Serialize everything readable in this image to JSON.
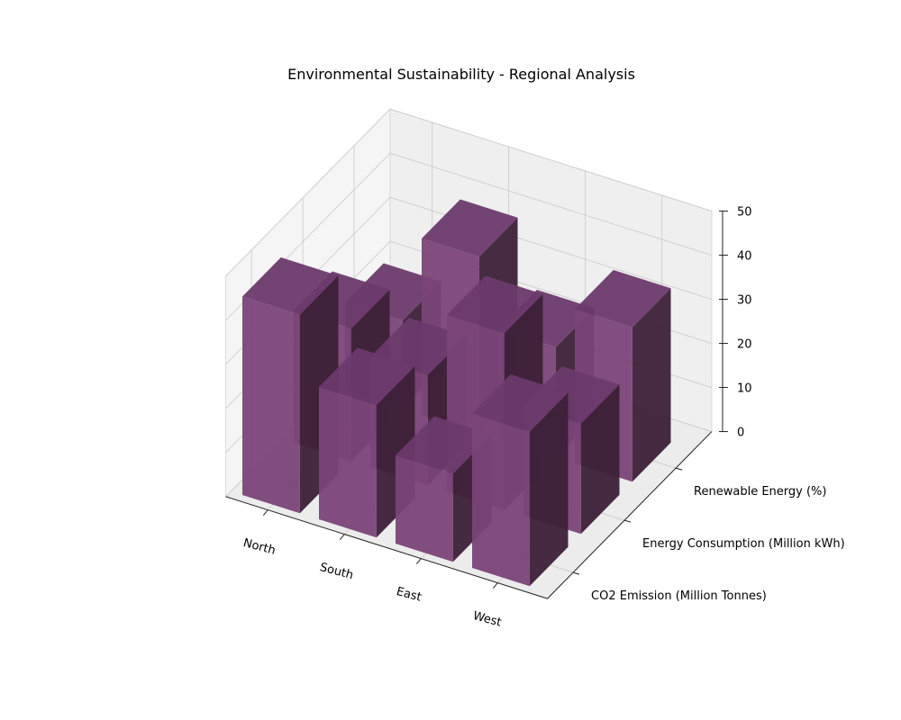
{
  "chart_data": {
    "type": "bar3d",
    "title": "Environmental Sustainability - Regional Analysis",
    "categories": [
      "North",
      "South",
      "East",
      "West"
    ],
    "series": [
      {
        "name": "CO2 Emission (Million Tonnes)",
        "values": [
          45,
          30,
          20,
          35
        ]
      },
      {
        "name": "Energy Consumption (Million kWh)",
        "values": [
          30,
          25,
          40,
          25
        ]
      },
      {
        "name": "Renewable Energy (%)",
        "values": [
          20,
          40,
          25,
          35
        ]
      }
    ],
    "zlim": [
      0,
      50
    ],
    "zticks": [
      0,
      10,
      20,
      30,
      40,
      50
    ],
    "bar_color": "#6b3a6b",
    "grid": true
  }
}
